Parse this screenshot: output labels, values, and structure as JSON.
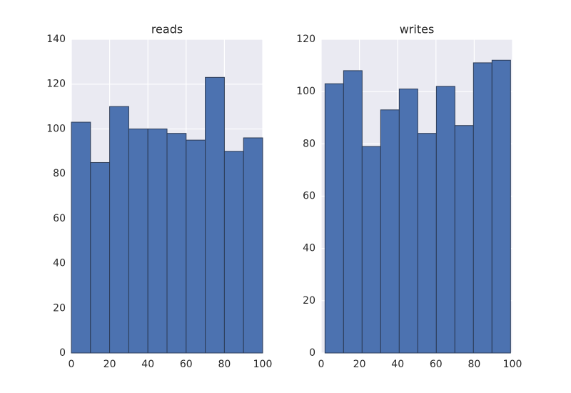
{
  "chart_data": [
    {
      "type": "histogram",
      "title": "reads",
      "bins": [
        0,
        10,
        20,
        30,
        40,
        50,
        60,
        70,
        80,
        90,
        100
      ],
      "values": [
        103,
        85,
        110,
        100,
        100,
        98,
        95,
        123,
        90,
        96
      ],
      "color": "#4c72b0",
      "xlim": [
        0,
        100
      ],
      "xticks": [
        0,
        20,
        40,
        60,
        80,
        100
      ],
      "ylim": [
        0,
        140
      ],
      "yticks": [
        0,
        20,
        40,
        60,
        80,
        100,
        120,
        140
      ],
      "grid": true
    },
    {
      "type": "histogram",
      "title": "writes",
      "bins": [
        2,
        11.7,
        21.4,
        31.1,
        40.8,
        50.5,
        60.2,
        69.9,
        79.6,
        89.3,
        99
      ],
      "values": [
        103,
        108,
        79,
        93,
        101,
        84,
        102,
        87,
        111,
        112
      ],
      "color": "#4c72b0",
      "xlim": [
        0,
        100
      ],
      "xticks": [
        0,
        20,
        40,
        60,
        80,
        100
      ],
      "ylim": [
        0,
        120
      ],
      "yticks": [
        0,
        20,
        40,
        60,
        80,
        100,
        120
      ],
      "grid": true
    }
  ]
}
